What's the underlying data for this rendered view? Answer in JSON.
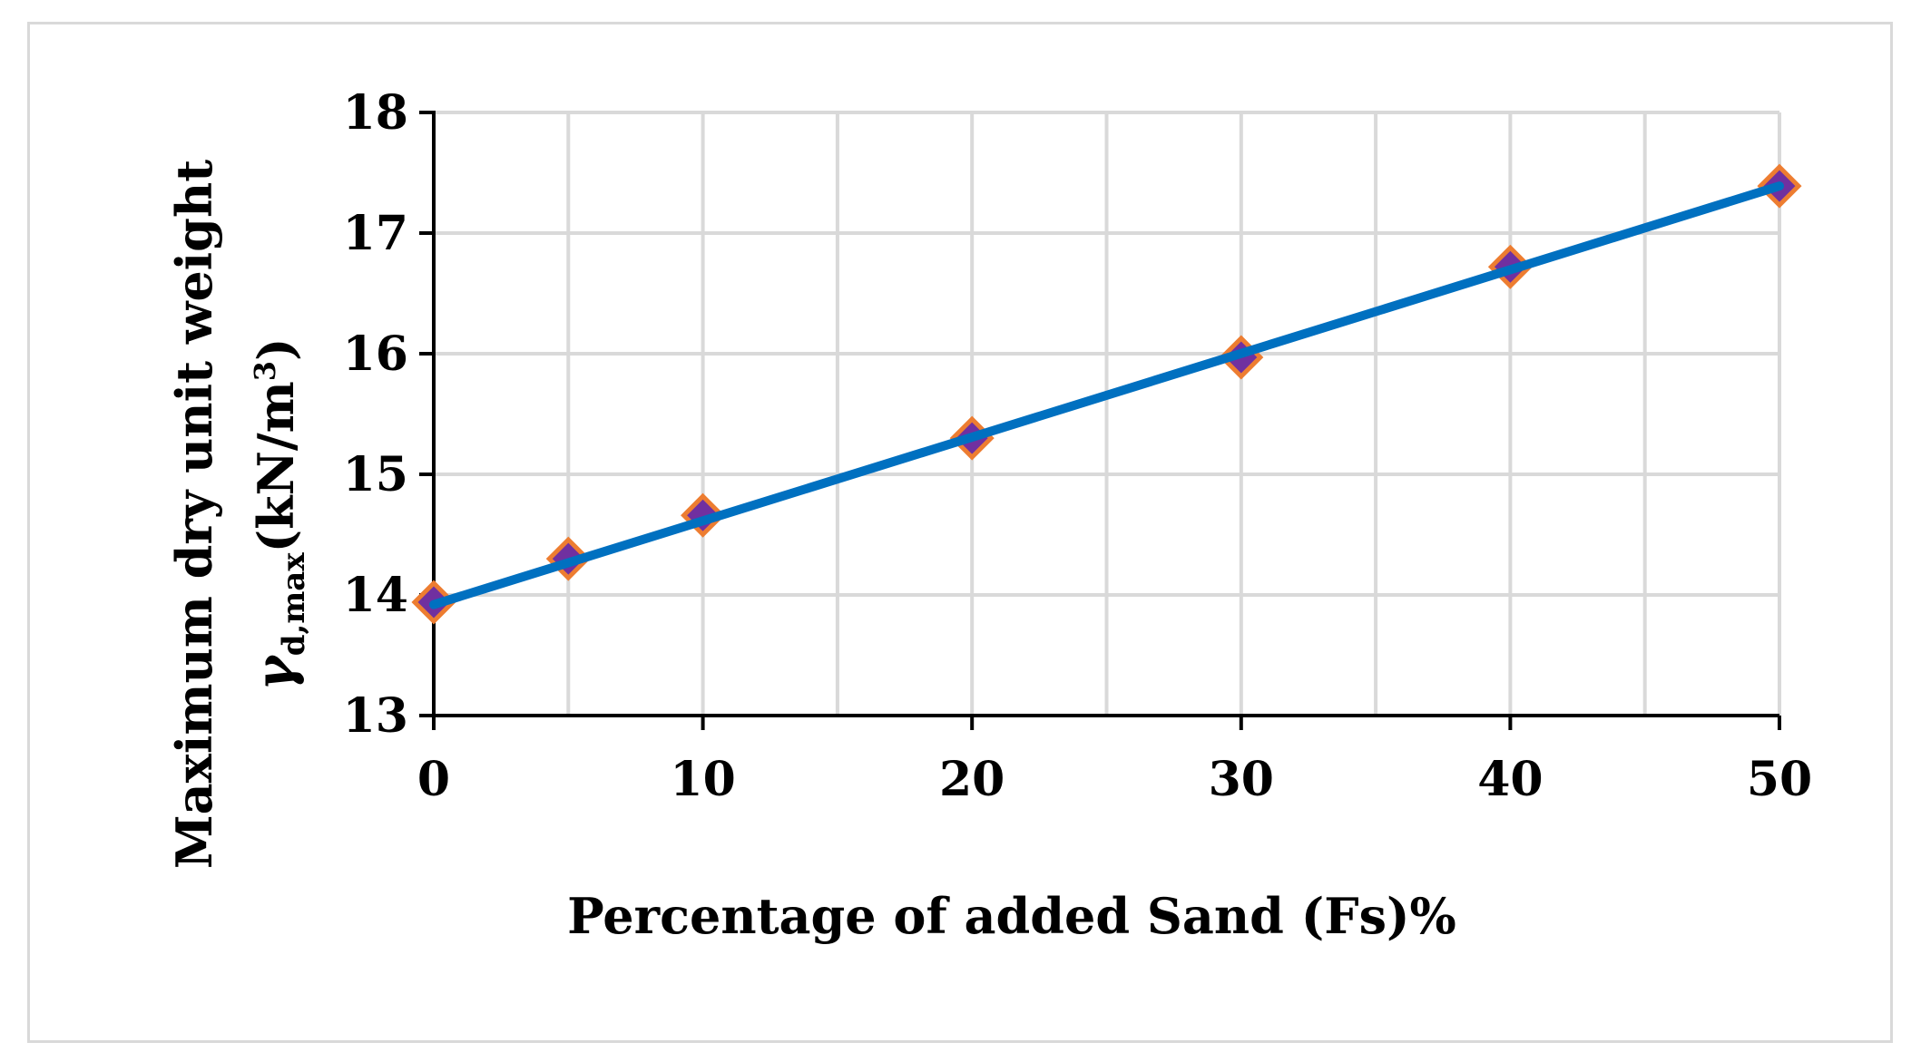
{
  "chart_data": {
    "type": "line",
    "title": "",
    "xlabel": "Percentage of added Sand (Fs)%",
    "ylabel_line1": "Maximum dry unit weight",
    "ylabel_symbol": "γ",
    "ylabel_subscript": "d,max",
    "ylabel_units_prefix": "(kN/m",
    "ylabel_units_superscript": "3",
    "ylabel_units_suffix": ")",
    "xlim": [
      0,
      50
    ],
    "ylim": [
      13,
      18
    ],
    "xticks": [
      0,
      10,
      20,
      30,
      40,
      50
    ],
    "x_minor_gridlines": [
      5,
      15,
      25,
      35,
      45
    ],
    "yticks": [
      13,
      14,
      15,
      16,
      17,
      18
    ],
    "grid": true,
    "legend": "none",
    "series": [
      {
        "type": "scatter",
        "marker": "diamond",
        "x": [
          0,
          5,
          10,
          20,
          30,
          40,
          50
        ],
        "y": [
          13.94,
          14.3,
          14.66,
          15.3,
          15.97,
          16.72,
          17.39
        ]
      },
      {
        "type": "line",
        "x": [
          0,
          50
        ],
        "y": [
          13.92,
          17.39
        ]
      }
    ],
    "colors": {
      "line": "#0070c0",
      "marker_fill": "#7030a0",
      "marker_edge": "#ed7d31",
      "grid": "#d9d9d9",
      "axis": "#000000"
    }
  }
}
